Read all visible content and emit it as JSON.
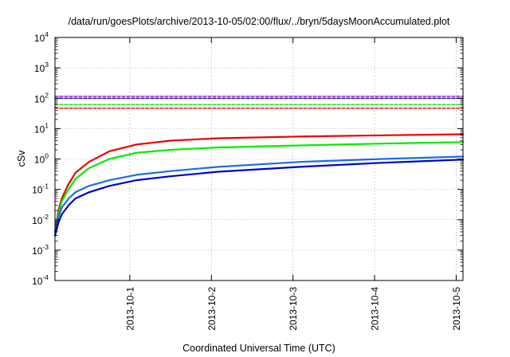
{
  "chart_data": {
    "type": "line",
    "title": "/data/run/goesPlots/archive/2013-10-05/02:00/flux/../bryn/5daysMoonAccumulated.plot",
    "xlabel": "Coordinated Universal Time (UTC)",
    "ylabel": "cSv",
    "y_scale": "log",
    "ylim": [
      0.0001,
      10000
    ],
    "xlim": [
      "2013-09-30T02:00",
      "2013-10-05T02:00"
    ],
    "x_ticks": [
      "2013-10-1",
      "2013-10-2",
      "2013-10-3",
      "2013-10-4",
      "2013-10-5"
    ],
    "y_ticks": [
      {
        "base": "10",
        "exp": "-4"
      },
      {
        "base": "10",
        "exp": "-3"
      },
      {
        "base": "10",
        "exp": "-2"
      },
      {
        "base": "10",
        "exp": "-1"
      },
      {
        "base": "10",
        "exp": "0"
      },
      {
        "base": "10",
        "exp": "1"
      },
      {
        "base": "10",
        "exp": "2"
      },
      {
        "base": "10",
        "exp": "3"
      },
      {
        "base": "10",
        "exp": "4"
      }
    ],
    "grid": true,
    "legend": "none",
    "series": [
      {
        "color": "#ee0000",
        "style": "solid",
        "x": [
          "2013-09-30T02:00",
          "2013-09-30T03:00",
          "2013-09-30T04:00",
          "2013-09-30T06:00",
          "2013-09-30T08:00",
          "2013-09-30T12:00",
          "2013-09-30T18:00",
          "2013-10-01T02:00",
          "2013-10-01T12:00",
          "2013-10-02T02:00",
          "2013-10-03T02:00",
          "2013-10-04T02:00",
          "2013-10-05T02:00"
        ],
        "y": [
          0.004,
          0.02,
          0.05,
          0.15,
          0.35,
          0.8,
          1.8,
          3.0,
          4.0,
          4.8,
          5.5,
          6.0,
          6.5
        ]
      },
      {
        "color": "#00ee00",
        "style": "solid",
        "x": [
          "2013-09-30T02:00",
          "2013-09-30T03:00",
          "2013-09-30T04:00",
          "2013-09-30T06:00",
          "2013-09-30T08:00",
          "2013-09-30T12:00",
          "2013-09-30T18:00",
          "2013-10-01T02:00",
          "2013-10-01T12:00",
          "2013-10-02T02:00",
          "2013-10-03T02:00",
          "2013-10-04T02:00",
          "2013-10-05T02:00"
        ],
        "y": [
          0.004,
          0.015,
          0.04,
          0.1,
          0.22,
          0.5,
          1.0,
          1.6,
          2.0,
          2.4,
          2.8,
          3.2,
          3.6
        ]
      },
      {
        "color": "#1a6fe0",
        "style": "solid",
        "x": [
          "2013-09-30T02:00",
          "2013-09-30T03:00",
          "2013-09-30T04:00",
          "2013-09-30T06:00",
          "2013-09-30T08:00",
          "2013-09-30T12:00",
          "2013-09-30T18:00",
          "2013-10-01T02:00",
          "2013-10-01T12:00",
          "2013-10-02T02:00",
          "2013-10-03T02:00",
          "2013-10-04T02:00",
          "2013-10-05T02:00"
        ],
        "y": [
          0.004,
          0.012,
          0.025,
          0.05,
          0.08,
          0.13,
          0.2,
          0.3,
          0.4,
          0.55,
          0.8,
          1.0,
          1.2
        ]
      },
      {
        "color": "#0000cc",
        "style": "solid",
        "x": [
          "2013-09-30T02:00",
          "2013-09-30T03:00",
          "2013-09-30T04:00",
          "2013-09-30T06:00",
          "2013-09-30T08:00",
          "2013-09-30T12:00",
          "2013-09-30T18:00",
          "2013-10-01T02:00",
          "2013-10-01T12:00",
          "2013-10-02T02:00",
          "2013-10-03T02:00",
          "2013-10-04T02:00",
          "2013-10-05T02:00"
        ],
        "y": [
          0.003,
          0.008,
          0.015,
          0.03,
          0.05,
          0.08,
          0.13,
          0.2,
          0.27,
          0.38,
          0.55,
          0.75,
          0.95
        ]
      },
      {
        "color": "#9900cc",
        "style": "dashed",
        "x": [
          "2013-09-30T02:00",
          "2013-10-05T02:00"
        ],
        "y": [
          115,
          115
        ]
      },
      {
        "color": "#0000cc",
        "style": "dashed",
        "x": [
          "2013-09-30T02:00",
          "2013-10-05T02:00"
        ],
        "y": [
          100,
          100
        ]
      },
      {
        "color": "#00ee00",
        "style": "dashed",
        "x": [
          "2013-09-30T02:00",
          "2013-10-05T02:00"
        ],
        "y": [
          62,
          62
        ]
      },
      {
        "color": "#ee0000",
        "style": "dashed",
        "x": [
          "2013-09-30T02:00",
          "2013-10-05T02:00"
        ],
        "y": [
          47,
          47
        ]
      }
    ]
  }
}
